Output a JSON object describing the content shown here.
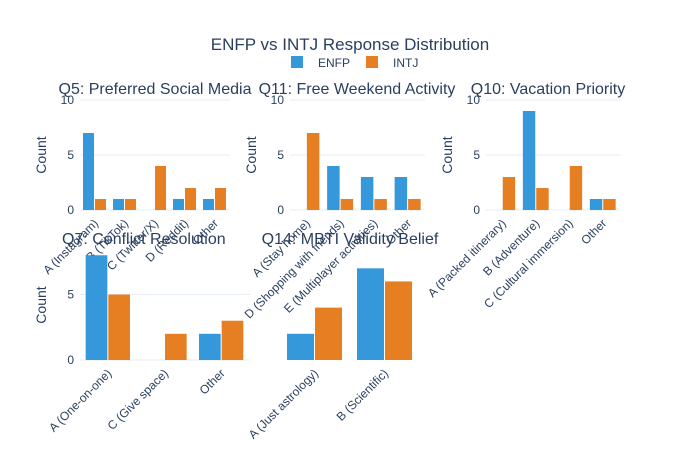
{
  "figure": {
    "title": "ENFP vs INTJ Response Distribution",
    "legend": [
      {
        "name": "ENFP",
        "color": "#3498db"
      },
      {
        "name": "INTJ",
        "color": "#e67e22"
      }
    ]
  },
  "chart_data": [
    {
      "type": "bar",
      "title": "Q5: Preferred Social Media",
      "categories": [
        "A (Instagram)",
        "B (TikTok)",
        "C (Twitter/X)",
        "D (Reddit)",
        "Other"
      ],
      "series": [
        {
          "name": "ENFP",
          "values": [
            7,
            1,
            0,
            1,
            1
          ]
        },
        {
          "name": "INTJ",
          "values": [
            1,
            1,
            4,
            2,
            2
          ]
        }
      ],
      "xlabel": "",
      "ylabel": "Count",
      "ylim": [
        0,
        10
      ],
      "yticks": [
        0,
        5,
        10
      ]
    },
    {
      "type": "bar",
      "title": "Q11: Free Weekend Activity",
      "categories": [
        "A (Stay home)",
        "D (Shopping with friends)",
        "E (Multiplayer activities)",
        "Other"
      ],
      "series": [
        {
          "name": "ENFP",
          "values": [
            0,
            4,
            3,
            3
          ]
        },
        {
          "name": "INTJ",
          "values": [
            7,
            1,
            1,
            1
          ]
        }
      ],
      "xlabel": "",
      "ylabel": "Count",
      "ylim": [
        0,
        10
      ],
      "yticks": [
        0,
        5,
        10
      ]
    },
    {
      "type": "bar",
      "title": "Q10: Vacation Priority",
      "categories": [
        "A (Packed itinerary)",
        "B (Adventure)",
        "C (Cultural immersion)",
        "Other"
      ],
      "series": [
        {
          "name": "ENFP",
          "values": [
            0,
            9,
            0,
            1
          ]
        },
        {
          "name": "INTJ",
          "values": [
            3,
            2,
            4,
            1
          ]
        }
      ],
      "xlabel": "",
      "ylabel": "Count",
      "ylim": [
        0,
        10
      ],
      "yticks": [
        0,
        5,
        10
      ]
    },
    {
      "type": "bar",
      "title": "Q7: Conflict Resolution",
      "categories": [
        "A (One-on-one)",
        "C (Give space)",
        "Other"
      ],
      "series": [
        {
          "name": "ENFP",
          "values": [
            8,
            0,
            2
          ]
        },
        {
          "name": "INTJ",
          "values": [
            5,
            2,
            3
          ]
        }
      ],
      "xlabel": "",
      "ylabel": "Count",
      "ylim": [
        0,
        8.4
      ],
      "yticks": [
        0,
        5
      ]
    },
    {
      "type": "bar",
      "title": "Q14: MBTI Validity Belief",
      "categories": [
        "A (Just astrology)",
        "B (Scientific)"
      ],
      "series": [
        {
          "name": "ENFP",
          "values": [
            2,
            7
          ]
        },
        {
          "name": "INTJ",
          "values": [
            4,
            6
          ]
        }
      ],
      "xlabel": "",
      "ylabel": "",
      "ylim": [
        0,
        8.4
      ],
      "yticks": []
    }
  ]
}
